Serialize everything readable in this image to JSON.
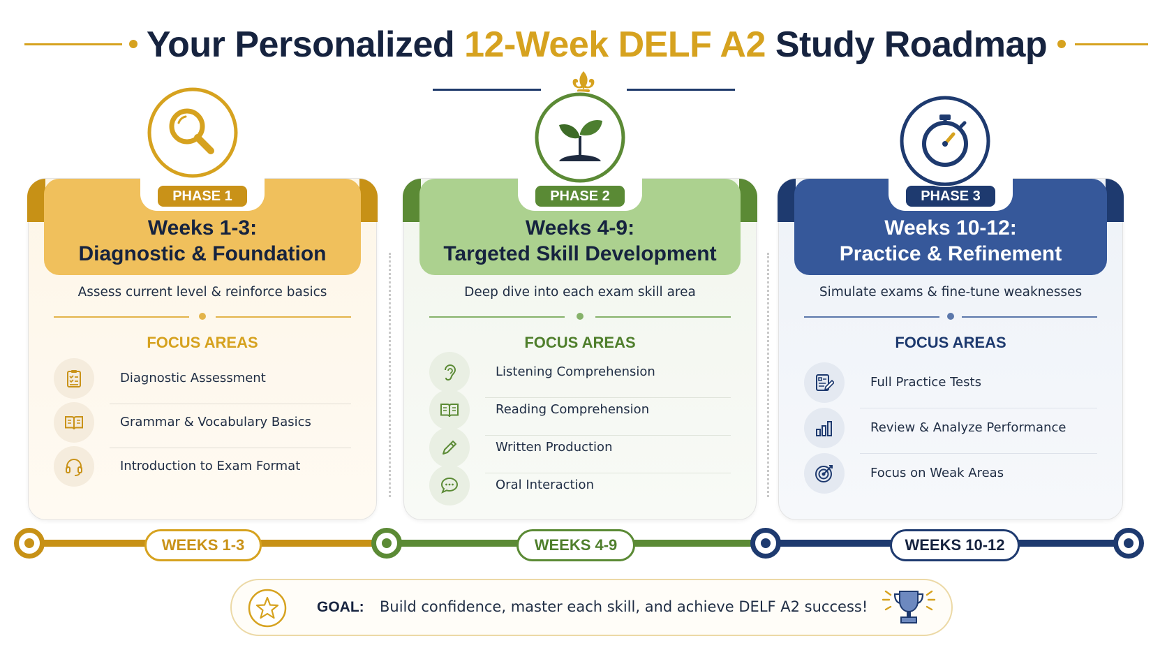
{
  "title": {
    "part1": "Your Personalized",
    "part2": "12-Week DELF A2",
    "part3": "Study Roadmap"
  },
  "colors": {
    "gold": "#d6a21f",
    "green": "#5b8a35",
    "navy": "#1e3a6f"
  },
  "phases": [
    {
      "badge": "PHASE 1",
      "title_line1": "Weeks 1-3:",
      "title_line2": "Diagnostic & Foundation",
      "description": "Assess current level & reinforce basics",
      "focus_title": "FOCUS AREAS",
      "top_icon": "magnifying-glass-icon",
      "items": [
        {
          "label": "Diagnostic Assessment",
          "icon": "clipboard-checklist-icon"
        },
        {
          "label": "Grammar & Vocabulary Basics",
          "icon": "open-book-icon"
        },
        {
          "label": "Introduction to Exam Format",
          "icon": "headset-icon"
        }
      ]
    },
    {
      "badge": "PHASE 2",
      "title_line1": "Weeks 4-9:",
      "title_line2": "Targeted Skill Development",
      "description": "Deep dive into each exam skill area",
      "focus_title": "FOCUS AREAS",
      "top_icon": "seedling-icon",
      "items": [
        {
          "label": "Listening Comprehension",
          "icon": "ear-icon"
        },
        {
          "label": "Reading Comprehension",
          "icon": "open-book-icon"
        },
        {
          "label": "Written Production",
          "icon": "pencil-icon"
        },
        {
          "label": "Oral Interaction",
          "icon": "speech-bubble-icon"
        }
      ]
    },
    {
      "badge": "PHASE 3",
      "title_line1": "Weeks 10-12:",
      "title_line2": "Practice & Refinement",
      "description": "Simulate exams & fine-tune weaknesses",
      "focus_title": "FOCUS AREAS",
      "top_icon": "stopwatch-icon",
      "items": [
        {
          "label": "Full Practice Tests",
          "icon": "test-document-icon"
        },
        {
          "label": "Review & Analyze Performance",
          "icon": "bar-chart-icon"
        },
        {
          "label": "Focus on Weak Areas",
          "icon": "target-icon"
        }
      ]
    }
  ],
  "timeline": {
    "labels": [
      "WEEKS 1-3",
      "WEEKS 4-9",
      "WEEKS 10-12"
    ]
  },
  "goal": {
    "label": "GOAL:",
    "text": "Build confidence, master each skill, and achieve DELF A2 success!",
    "left_icon": "star-icon",
    "right_icon": "trophy-icon"
  }
}
